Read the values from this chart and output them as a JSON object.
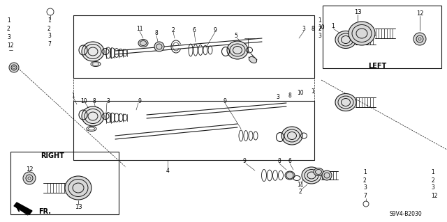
{
  "bg_color": "#ffffff",
  "line_color": "#1a1a1a",
  "diagram_code": "S9V4-B2030",
  "left_label": "LEFT",
  "right_label": "RIGHT",
  "fr_label": "FR.",
  "figsize": [
    6.4,
    3.19
  ],
  "dpi": 100,
  "gray": "#666666",
  "light_gray": "#aaaaaa",
  "dark_gray": "#333333"
}
